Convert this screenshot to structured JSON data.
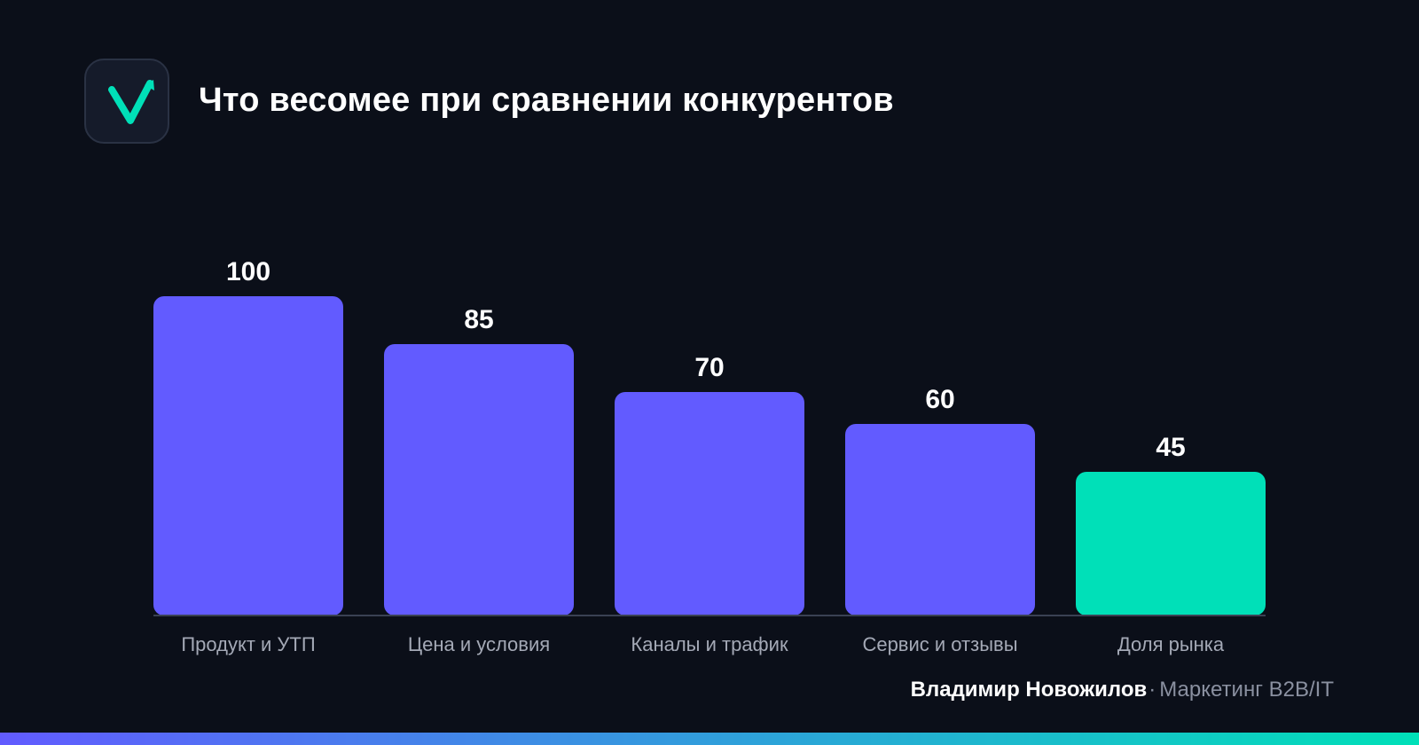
{
  "header": {
    "title": "Что весомее при сравнении конкурентов",
    "logo_icon": "checkmark-arrow-logo-icon"
  },
  "chart_data": {
    "type": "bar",
    "title": "Что весомее при сравнении конкурентов",
    "xlabel": "",
    "ylabel": "",
    "ylim": [
      0,
      100
    ],
    "grid": false,
    "categories": [
      "Продукт и УТП",
      "Цена и условия",
      "Каналы и трафик",
      "Сервис и отзывы",
      "Доля рынка"
    ],
    "values": [
      100,
      85,
      70,
      60,
      45
    ],
    "value_labels": [
      "100",
      "85",
      "70",
      "60",
      "45"
    ],
    "colors": [
      "#625bff",
      "#625bff",
      "#625bff",
      "#625bff",
      "#00e0b8"
    ]
  },
  "footer": {
    "author": "Владимир Новожилов",
    "separator": "·",
    "role": "Маркетинг B2B/IT"
  },
  "theme": {
    "background": "#0b0f19",
    "accent_primary": "#625bff",
    "accent_secondary": "#00e0b8",
    "axis_color": "#3a4153",
    "label_color": "#a4a9b6"
  }
}
